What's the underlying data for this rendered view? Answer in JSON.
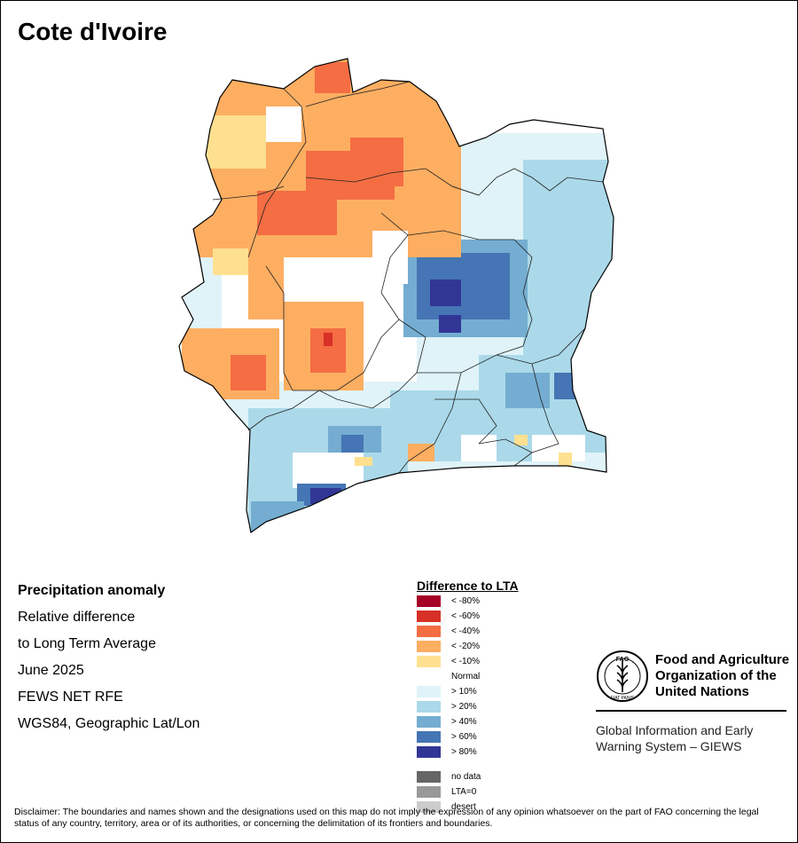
{
  "map_title": "Cote d'Ivoire",
  "info": {
    "heading": "Precipitation anomaly",
    "lines": [
      "Relative difference",
      "to Long Term Average",
      "June 2025",
      "FEWS NET RFE",
      "WGS84, Geographic Lat/Lon"
    ]
  },
  "legend": {
    "title": "Difference to LTA",
    "items": [
      {
        "label": "< -80%",
        "color": "#a50026"
      },
      {
        "label": "< -60%",
        "color": "#d73027"
      },
      {
        "label": "< -40%",
        "color": "#f46d43"
      },
      {
        "label": "< -20%",
        "color": "#fdae61"
      },
      {
        "label": "< -10%",
        "color": "#fee090"
      },
      {
        "label": "Normal",
        "color": "#ffffff"
      },
      {
        "label": "> 10%",
        "color": "#e0f3f8"
      },
      {
        "label": "> 20%",
        "color": "#abd9e9"
      },
      {
        "label": "> 40%",
        "color": "#74add1"
      },
      {
        "label": "> 60%",
        "color": "#4575b4"
      },
      {
        "label": "> 80%",
        "color": "#313695"
      },
      {
        "label": "no data",
        "color": "#666666"
      },
      {
        "label": "LTA=0",
        "color": "#999999"
      },
      {
        "label": "desert",
        "color": "#cccccc"
      }
    ]
  },
  "fao": {
    "name_lines": [
      "Food and Agriculture",
      "Organization of the",
      "United Nations"
    ],
    "logo_letters": "FAO",
    "logo_motto": "FIAT PANIS",
    "giews_lines": [
      "Global Information and Early",
      "Warning System – GIEWS"
    ]
  },
  "disclaimer": "Disclaimer: The boundaries and names shown and the designations used on this map do not imply the expression of any opinion whatsoever on the part of FAO concerning the legal status of any country, territory, area or of its authorities, or concerning the delimitation of its frontiers and boundaries."
}
